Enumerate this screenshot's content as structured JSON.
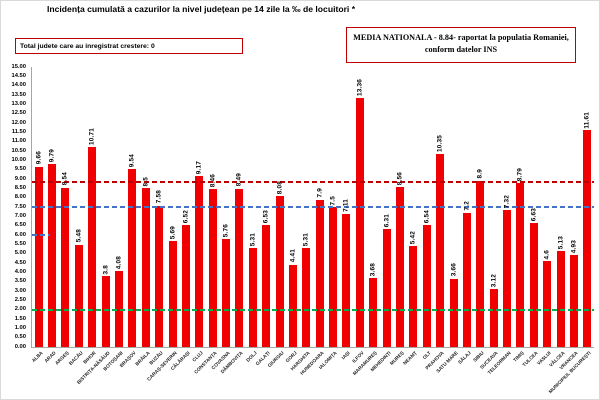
{
  "title": "Incidența cumulată a cazurilor la nivel județean pe 14 zile la ‰ de locuitori *",
  "info_box": {
    "label": "Total judete care au inregistrat crestere: 0"
  },
  "national_average_box": {
    "line1": "MEDIA NATIONALA - 8.84-  raportat la populatia  Romaniei,",
    "line2": "conform datelor INS"
  },
  "chart_data": {
    "type": "bar",
    "title": "Incidența cumulată a cazurilor la nivel județean pe 14 zile la ‰ de locuitori *",
    "xlabel": "",
    "ylabel": "",
    "ylim": [
      0,
      15
    ],
    "ytick_step": 0.5,
    "grid": false,
    "bar_color": "#f00000",
    "categories": [
      "ALBA",
      "ARAD",
      "ARGEȘ",
      "BACĂU",
      "BIHOR",
      "BISTRIȚA-NĂSĂUD",
      "BOTOȘANI",
      "BRAȘOV",
      "BRĂILA",
      "BUZĂU",
      "CARAȘ-SEVERIN",
      "CĂLĂRAȘI",
      "CLUJ",
      "CONSTANȚA",
      "COVASNA",
      "DÂMBOVIȚA",
      "DOLJ",
      "GALAȚI",
      "GIURGIU",
      "GORJ",
      "HARGHITA",
      "HUNEDOARA",
      "IALOMIȚA",
      "IAȘI",
      "ILFOV",
      "MARAMUREȘ",
      "MEHEDINȚI",
      "MUREȘ",
      "NEAMȚ",
      "OLT",
      "PRAHOVA",
      "SATU MARE",
      "SĂLAJ",
      "SIBIU",
      "SUCEAVA",
      "TELEORMAN",
      "TIMIȘ",
      "TULCEA",
      "VASLUI",
      "VÂLCEA",
      "VRANCEA",
      "MUNICIPIUL BUCUREȘTI"
    ],
    "values": [
      9.66,
      9.79,
      8.54,
      5.48,
      10.71,
      3.8,
      4.08,
      9.54,
      8.5,
      7.58,
      5.69,
      6.52,
      9.17,
      8.46,
      5.76,
      8.49,
      5.31,
      6.53,
      8.08,
      4.41,
      5.31,
      7.9,
      7.5,
      7.11,
      13.36,
      3.68,
      6.31,
      8.56,
      5.42,
      6.54,
      10.35,
      3.66,
      7.2,
      8.9,
      3.12,
      7.32,
      8.79,
      6.63,
      4.6,
      5.13,
      4.93,
      11.61
    ],
    "reference_lines": [
      {
        "name": "media-nationala-line",
        "value": 8.84,
        "color": "#c00000",
        "style": "dashed",
        "span": "full"
      },
      {
        "name": "threshold-7-5-line",
        "value": 7.5,
        "color": "#4472c4",
        "style": "dashed",
        "span": "full"
      },
      {
        "name": "threshold-2-line",
        "value": 2.0,
        "color": "#00b050",
        "style": "dashed",
        "span": "full"
      },
      {
        "name": "threshold-6-segment",
        "value": 6.0,
        "color": "#4472c4",
        "style": "dashed",
        "span": "partial"
      }
    ],
    "legend": null
  }
}
